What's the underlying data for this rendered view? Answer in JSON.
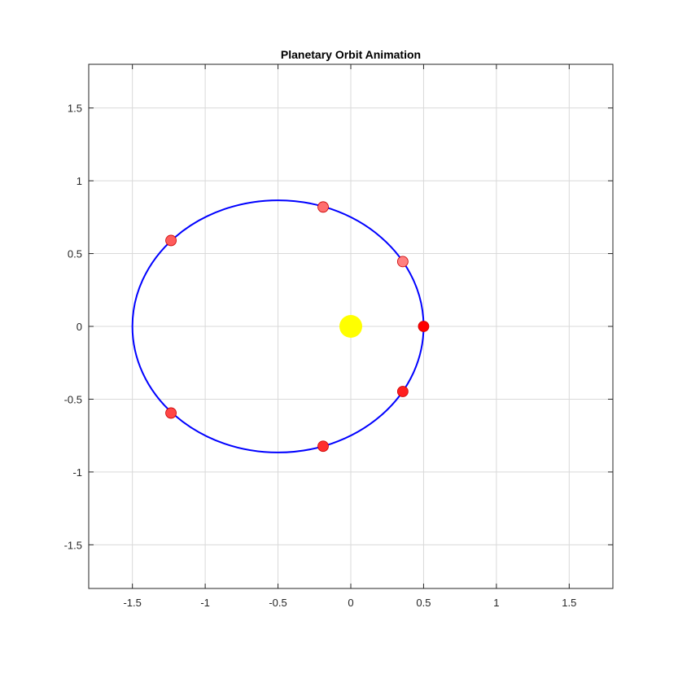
{
  "chart_data": {
    "type": "scatter",
    "title": "Planetary Orbit Animation",
    "xlabel": "",
    "ylabel": "",
    "xlim": [
      -1.8,
      1.8
    ],
    "ylim": [
      -1.8,
      1.8
    ],
    "grid": true,
    "x_ticks": [
      -1.5,
      -1,
      -0.5,
      0,
      0.5,
      1,
      1.5
    ],
    "y_ticks": [
      -1.5,
      -1,
      -0.5,
      0,
      0.5,
      1,
      1.5
    ],
    "x_tick_labels": [
      "-1.5",
      "-1",
      "-0.5",
      "0",
      "0.5",
      "1",
      "1.5"
    ],
    "y_tick_labels": [
      "-1.5",
      "-1",
      "-0.5",
      "0",
      "0.5",
      "1",
      "1.5"
    ],
    "orbit": {
      "center_x": -0.5,
      "center_y": 0,
      "semi_major": 1.0,
      "semi_minor": 0.866,
      "color": "#0000ff"
    },
    "sun": {
      "x": 0,
      "y": 0,
      "color": "#ffff00"
    },
    "planets": [
      {
        "x": 0.5,
        "y": 0.0,
        "color": "#ff0000"
      },
      {
        "x": 0.357,
        "y": -0.447,
        "color": "#ff1e1e"
      },
      {
        "x": -0.19,
        "y": -0.823,
        "color": "#ff2e2e"
      },
      {
        "x": -1.235,
        "y": -0.595,
        "color": "#ff4646"
      },
      {
        "x": -1.235,
        "y": 0.59,
        "color": "#ff5c5c"
      },
      {
        "x": -0.19,
        "y": 0.82,
        "color": "#ff6e6e"
      },
      {
        "x": 0.357,
        "y": 0.445,
        "color": "#ff8080"
      }
    ]
  }
}
